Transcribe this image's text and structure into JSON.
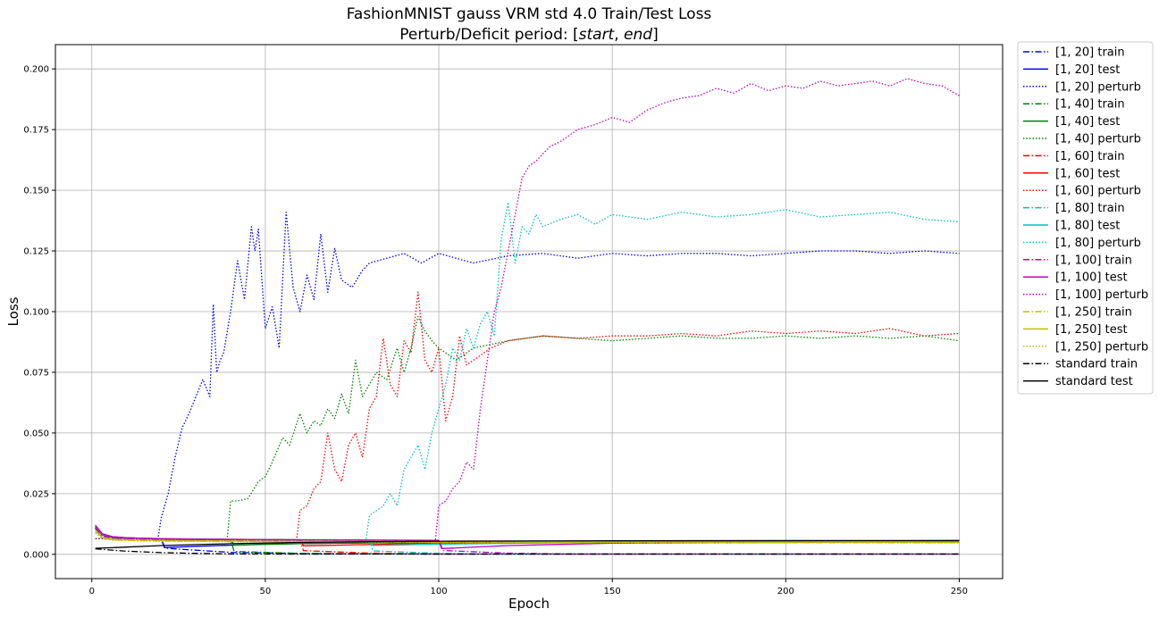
{
  "chart_data": {
    "type": "line",
    "title_prefix": "FashionMNIST gauss VRM std 4.0 Train/Test Loss",
    "subtitle_prefix": "Perturb/Deficit period: [",
    "subtitle_start": "start",
    "subtitle_sep": ", ",
    "subtitle_end": "end",
    "subtitle_suffix": "]",
    "xlabel": "Epoch",
    "ylabel": "Loss",
    "xlim": [
      -10.5,
      262.5
    ],
    "ylim": [
      -0.01,
      0.21
    ],
    "xticks": [
      0,
      50,
      100,
      150,
      200,
      250
    ],
    "xtick_labels": [
      "0",
      "50",
      "100",
      "150",
      "200",
      "250"
    ],
    "yticks": [
      0.0,
      0.025,
      0.05,
      0.075,
      0.1,
      0.125,
      0.15,
      0.175,
      0.2
    ],
    "ytick_labels": [
      "0.000",
      "0.025",
      "0.050",
      "0.075",
      "0.100",
      "0.125",
      "0.150",
      "0.175",
      "0.200"
    ],
    "grid": true,
    "legend_position": "outside-right",
    "series": [
      {
        "name": "[1, 20] train",
        "color": "#0000ff",
        "style": "dashdot",
        "x": [
          1,
          3,
          6,
          10,
          15,
          20,
          21,
          40,
          60,
          100,
          250
        ],
        "y": [
          0.0105,
          0.0075,
          0.0068,
          0.0066,
          0.0064,
          0.0062,
          0.0025,
          0.0008,
          0.0003,
          0.0001,
          0.0001
        ]
      },
      {
        "name": "[1, 20] test",
        "color": "#0000ff",
        "style": "solid",
        "x": [
          1,
          3,
          6,
          10,
          15,
          20,
          21,
          30,
          50,
          80,
          120,
          180,
          250
        ],
        "y": [
          0.011,
          0.008,
          0.007,
          0.0068,
          0.0066,
          0.0065,
          0.0028,
          0.0033,
          0.0042,
          0.0048,
          0.0052,
          0.0053,
          0.0054
        ]
      },
      {
        "name": "[1, 20] perturb",
        "color": "#0000ff",
        "style": "dotted",
        "x": [
          1,
          5,
          10,
          15,
          19,
          20,
          22,
          24,
          26,
          28,
          30,
          32,
          34,
          35,
          36,
          37,
          38,
          40,
          42,
          44,
          46,
          47,
          48,
          50,
          52,
          54,
          56,
          58,
          60,
          62,
          64,
          66,
          68,
          70,
          72,
          75,
          78,
          80,
          85,
          90,
          95,
          100,
          110,
          120,
          130,
          140,
          150,
          160,
          170,
          180,
          190,
          200,
          210,
          220,
          230,
          240,
          250
        ],
        "y": [
          0.0065,
          0.0063,
          0.0062,
          0.006,
          0.006,
          0.015,
          0.025,
          0.04,
          0.052,
          0.058,
          0.065,
          0.072,
          0.065,
          0.103,
          0.075,
          0.08,
          0.083,
          0.1,
          0.121,
          0.105,
          0.135,
          0.125,
          0.134,
          0.093,
          0.102,
          0.085,
          0.141,
          0.11,
          0.1,
          0.115,
          0.105,
          0.132,
          0.108,
          0.126,
          0.113,
          0.11,
          0.117,
          0.12,
          0.122,
          0.124,
          0.12,
          0.124,
          0.12,
          0.123,
          0.124,
          0.122,
          0.124,
          0.123,
          0.124,
          0.124,
          0.123,
          0.124,
          0.125,
          0.125,
          0.124,
          0.125,
          0.124
        ]
      },
      {
        "name": "[1, 40] train",
        "color": "#008000",
        "style": "dashdot",
        "x": [
          1,
          3,
          6,
          10,
          20,
          30,
          40,
          41,
          60,
          100,
          250
        ],
        "y": [
          0.0108,
          0.0075,
          0.0066,
          0.0064,
          0.0061,
          0.006,
          0.006,
          0.0012,
          0.0004,
          0.0001,
          0.0001
        ]
      },
      {
        "name": "[1, 40] test",
        "color": "#008000",
        "style": "solid",
        "x": [
          1,
          3,
          6,
          10,
          20,
          30,
          40,
          41,
          60,
          100,
          150,
          250
        ],
        "y": [
          0.0112,
          0.008,
          0.007,
          0.0067,
          0.0064,
          0.0062,
          0.0061,
          0.0038,
          0.0044,
          0.005,
          0.0053,
          0.0054
        ]
      },
      {
        "name": "[1, 40] perturb",
        "color": "#008000",
        "style": "dotted",
        "x": [
          1,
          10,
          20,
          30,
          39,
          40,
          42,
          45,
          48,
          50,
          52,
          55,
          57,
          60,
          62,
          64,
          66,
          68,
          70,
          72,
          74,
          76,
          78,
          80,
          82,
          85,
          88,
          90,
          92,
          94,
          96,
          98,
          100,
          105,
          110,
          120,
          130,
          140,
          150,
          160,
          170,
          180,
          190,
          200,
          210,
          220,
          230,
          240,
          250
        ],
        "y": [
          0.0065,
          0.0062,
          0.006,
          0.006,
          0.006,
          0.022,
          0.022,
          0.023,
          0.03,
          0.032,
          0.038,
          0.048,
          0.045,
          0.058,
          0.05,
          0.055,
          0.053,
          0.06,
          0.056,
          0.066,
          0.058,
          0.08,
          0.065,
          0.07,
          0.075,
          0.072,
          0.085,
          0.075,
          0.085,
          0.098,
          0.092,
          0.088,
          0.085,
          0.08,
          0.085,
          0.088,
          0.09,
          0.089,
          0.088,
          0.089,
          0.09,
          0.089,
          0.089,
          0.09,
          0.089,
          0.09,
          0.089,
          0.09,
          0.088
        ]
      },
      {
        "name": "[1, 60] train",
        "color": "#ff0000",
        "style": "dashdot",
        "x": [
          1,
          3,
          6,
          10,
          20,
          40,
          60,
          61,
          80,
          100,
          250
        ],
        "y": [
          0.0106,
          0.0076,
          0.0067,
          0.0064,
          0.0062,
          0.006,
          0.0059,
          0.0015,
          0.0005,
          0.0001,
          0.0001
        ]
      },
      {
        "name": "[1, 60] test",
        "color": "#ff0000",
        "style": "solid",
        "x": [
          1,
          3,
          6,
          10,
          20,
          40,
          60,
          61,
          80,
          100,
          150,
          250
        ],
        "y": [
          0.0115,
          0.0082,
          0.0072,
          0.0068,
          0.0064,
          0.0062,
          0.006,
          0.0035,
          0.004,
          0.0047,
          0.0052,
          0.0053
        ]
      },
      {
        "name": "[1, 60] perturb",
        "color": "#ff0000",
        "style": "dotted",
        "x": [
          1,
          20,
          40,
          59,
          60,
          62,
          64,
          66,
          68,
          70,
          72,
          74,
          76,
          78,
          80,
          82,
          84,
          86,
          88,
          90,
          92,
          94,
          96,
          98,
          100,
          102,
          104,
          106,
          108,
          110,
          115,
          120,
          130,
          140,
          150,
          160,
          170,
          180,
          190,
          200,
          210,
          220,
          230,
          240,
          250
        ],
        "y": [
          0.0065,
          0.0061,
          0.006,
          0.006,
          0.018,
          0.02,
          0.027,
          0.03,
          0.05,
          0.035,
          0.03,
          0.045,
          0.05,
          0.04,
          0.06,
          0.065,
          0.089,
          0.07,
          0.065,
          0.088,
          0.083,
          0.108,
          0.08,
          0.075,
          0.085,
          0.055,
          0.065,
          0.09,
          0.078,
          0.08,
          0.085,
          0.088,
          0.09,
          0.089,
          0.09,
          0.09,
          0.091,
          0.09,
          0.092,
          0.091,
          0.092,
          0.091,
          0.093,
          0.09,
          0.091
        ]
      },
      {
        "name": "[1, 80] train",
        "color": "#00bfbf",
        "style": "dashdot",
        "x": [
          1,
          3,
          6,
          10,
          20,
          40,
          60,
          80,
          81,
          100,
          120,
          250
        ],
        "y": [
          0.0107,
          0.0077,
          0.0067,
          0.0065,
          0.0062,
          0.006,
          0.0059,
          0.0058,
          0.0014,
          0.0004,
          0.0001,
          0.0001
        ]
      },
      {
        "name": "[1, 80] test",
        "color": "#00bfbf",
        "style": "solid",
        "x": [
          1,
          3,
          6,
          10,
          20,
          40,
          60,
          80,
          81,
          100,
          150,
          250
        ],
        "y": [
          0.0118,
          0.0083,
          0.0072,
          0.0068,
          0.0064,
          0.0062,
          0.006,
          0.0059,
          0.0036,
          0.0042,
          0.005,
          0.0053
        ]
      },
      {
        "name": "[1, 80] perturb",
        "color": "#00bfbf",
        "style": "dotted",
        "x": [
          1,
          20,
          40,
          60,
          79,
          80,
          82,
          84,
          86,
          88,
          90,
          92,
          94,
          96,
          98,
          100,
          102,
          104,
          106,
          108,
          110,
          112,
          114,
          116,
          118,
          120,
          122,
          124,
          126,
          128,
          130,
          135,
          140,
          145,
          150,
          160,
          170,
          180,
          190,
          200,
          210,
          220,
          230,
          240,
          250
        ],
        "y": [
          0.0065,
          0.0061,
          0.006,
          0.0059,
          0.0058,
          0.016,
          0.018,
          0.02,
          0.025,
          0.02,
          0.035,
          0.04,
          0.045,
          0.035,
          0.05,
          0.06,
          0.07,
          0.085,
          0.08,
          0.093,
          0.085,
          0.095,
          0.1,
          0.09,
          0.13,
          0.145,
          0.12,
          0.135,
          0.132,
          0.14,
          0.135,
          0.138,
          0.14,
          0.136,
          0.14,
          0.138,
          0.141,
          0.139,
          0.14,
          0.142,
          0.139,
          0.14,
          0.141,
          0.138,
          0.137
        ]
      },
      {
        "name": "[1, 100] train",
        "color": "#bf00bf",
        "style": "dashdot",
        "x": [
          1,
          3,
          6,
          10,
          20,
          40,
          60,
          80,
          100,
          101,
          120,
          140,
          250
        ],
        "y": [
          0.0109,
          0.0078,
          0.0068,
          0.0065,
          0.0062,
          0.006,
          0.0059,
          0.0058,
          0.0057,
          0.0016,
          0.0005,
          0.0001,
          0.0001
        ]
      },
      {
        "name": "[1, 100] test",
        "color": "#bf00bf",
        "style": "solid",
        "x": [
          1,
          3,
          6,
          10,
          20,
          40,
          60,
          80,
          100,
          101,
          120,
          150,
          250
        ],
        "y": [
          0.012,
          0.0085,
          0.0073,
          0.0068,
          0.0064,
          0.0062,
          0.006,
          0.0059,
          0.0058,
          0.0024,
          0.0036,
          0.0046,
          0.0052
        ]
      },
      {
        "name": "[1, 100] perturb",
        "color": "#bf00bf",
        "style": "dotted",
        "x": [
          1,
          20,
          40,
          60,
          80,
          99,
          100,
          102,
          104,
          106,
          108,
          110,
          112,
          114,
          116,
          118,
          120,
          122,
          124,
          126,
          128,
          130,
          132,
          135,
          138,
          140,
          145,
          150,
          155,
          160,
          165,
          170,
          175,
          180,
          185,
          190,
          195,
          200,
          205,
          210,
          215,
          220,
          225,
          230,
          235,
          240,
          245,
          250
        ],
        "y": [
          0.0065,
          0.0061,
          0.006,
          0.0059,
          0.0058,
          0.0057,
          0.02,
          0.022,
          0.027,
          0.03,
          0.038,
          0.035,
          0.06,
          0.08,
          0.1,
          0.11,
          0.125,
          0.14,
          0.155,
          0.16,
          0.162,
          0.165,
          0.168,
          0.17,
          0.173,
          0.175,
          0.177,
          0.18,
          0.178,
          0.183,
          0.186,
          0.188,
          0.189,
          0.192,
          0.19,
          0.194,
          0.191,
          0.193,
          0.192,
          0.195,
          0.193,
          0.194,
          0.195,
          0.193,
          0.196,
          0.194,
          0.193,
          0.189
        ]
      },
      {
        "name": "[1, 250] train",
        "color": "#bfbf00",
        "style": "dashdot",
        "x": [
          1,
          3,
          6,
          10,
          20,
          50,
          100,
          150,
          200,
          250
        ],
        "y": [
          0.0095,
          0.0068,
          0.006,
          0.0058,
          0.0055,
          0.0052,
          0.005,
          0.0049,
          0.0048,
          0.0048
        ]
      },
      {
        "name": "[1, 250] test",
        "color": "#bfbf00",
        "style": "solid",
        "x": [
          1,
          3,
          6,
          10,
          20,
          50,
          100,
          150,
          200,
          250
        ],
        "y": [
          0.01,
          0.007,
          0.0062,
          0.006,
          0.0057,
          0.0054,
          0.0052,
          0.0051,
          0.005,
          0.005
        ]
      },
      {
        "name": "[1, 250] perturb",
        "color": "#bfbf00",
        "style": "dotted",
        "x": [
          1,
          3,
          6,
          10,
          20,
          50,
          100,
          150,
          200,
          250
        ],
        "y": [
          0.0088,
          0.0065,
          0.0058,
          0.0056,
          0.0054,
          0.0051,
          0.0049,
          0.0048,
          0.0048,
          0.0047
        ]
      },
      {
        "name": "standard train",
        "color": "#000000",
        "style": "dashdot",
        "x": [
          1,
          5,
          10,
          20,
          30,
          40,
          60,
          80,
          100,
          150,
          250
        ],
        "y": [
          0.0023,
          0.0018,
          0.0013,
          0.0007,
          0.0004,
          0.0002,
          0.0001,
          0.0001,
          0.0001,
          0.0001,
          0.0001
        ]
      },
      {
        "name": "standard test",
        "color": "#000000",
        "style": "solid",
        "x": [
          1,
          5,
          10,
          20,
          30,
          40,
          60,
          80,
          100,
          150,
          250
        ],
        "y": [
          0.0025,
          0.0027,
          0.003,
          0.0036,
          0.004,
          0.0044,
          0.0049,
          0.0052,
          0.0054,
          0.0056,
          0.0057
        ]
      }
    ]
  }
}
